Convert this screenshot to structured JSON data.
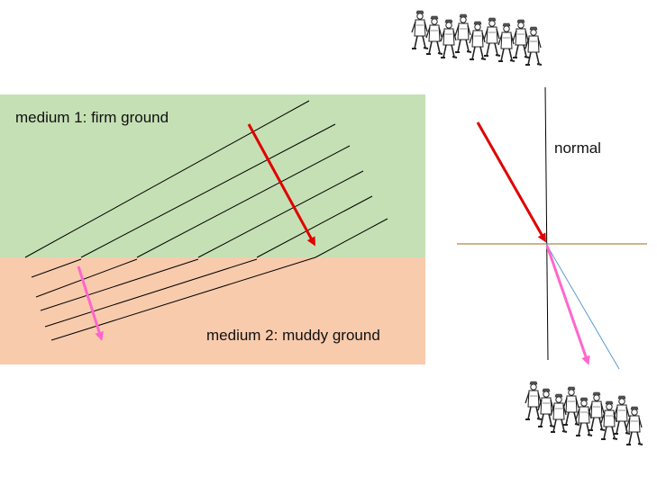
{
  "labels": {
    "medium1": "medium 1: firm ground",
    "medium2": "medium 2: muddy ground",
    "normal": "normal"
  },
  "colors": {
    "medium1": "#c5e0b4",
    "medium2": "#f8cbad",
    "incident_arrow": "#e00000",
    "refracted_arrow": "#ff66cc",
    "boundary_line": "#a0671e",
    "extension_line": "#5b9bd5",
    "wavefront": "#000000"
  },
  "icons": {
    "top": "marching-soldiers-icon",
    "bottom": "marching-soldiers-icon"
  }
}
